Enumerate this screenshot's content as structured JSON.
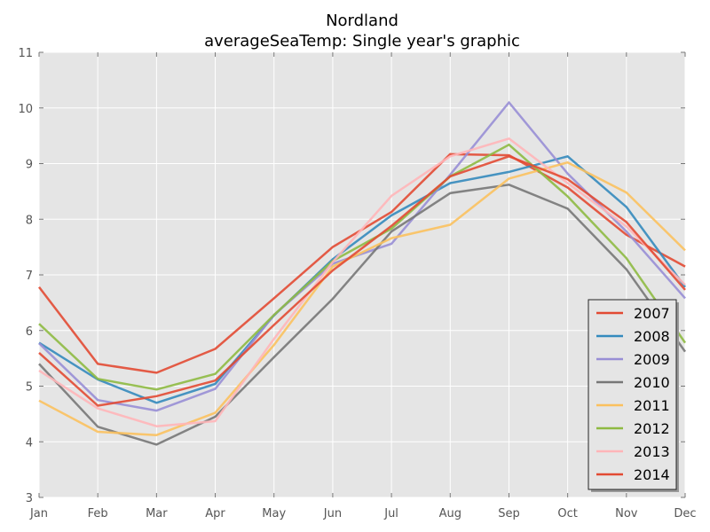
{
  "chart_data": {
    "type": "line",
    "title": "Nordland",
    "subtitle": "averageSeaTemp: Single year's graphic",
    "xlabel": "",
    "ylabel": "",
    "categories": [
      "Jan",
      "Feb",
      "Mar",
      "Apr",
      "May",
      "Jun",
      "Jul",
      "Aug",
      "Sep",
      "Oct",
      "Nov",
      "Dec"
    ],
    "ylim": [
      3,
      11
    ],
    "yticks": [
      3,
      4,
      5,
      6,
      7,
      8,
      9,
      10,
      11
    ],
    "grid": true,
    "legend_position": "bottom-right",
    "background": "#e5e5e5",
    "series": [
      {
        "name": "2007",
        "color": "#e24a33",
        "values": [
          6.78,
          5.4,
          5.24,
          5.67,
          6.58,
          7.5,
          8.13,
          9.17,
          9.15,
          8.57,
          7.72,
          7.15
        ]
      },
      {
        "name": "2008",
        "color": "#348abd",
        "values": [
          5.78,
          5.12,
          4.7,
          5.04,
          6.27,
          7.28,
          8.07,
          8.65,
          8.85,
          9.13,
          8.22,
          6.78
        ]
      },
      {
        "name": "2009",
        "color": "#988ed5",
        "values": [
          5.77,
          4.75,
          4.56,
          4.95,
          6.28,
          7.2,
          7.56,
          8.8,
          10.1,
          8.82,
          7.78,
          6.58
        ]
      },
      {
        "name": "2010",
        "color": "#777777",
        "values": [
          5.4,
          4.27,
          3.95,
          4.45,
          5.52,
          6.57,
          7.78,
          8.47,
          8.62,
          8.19,
          7.1,
          5.62
        ]
      },
      {
        "name": "2011",
        "color": "#fbc15e",
        "values": [
          4.74,
          4.18,
          4.12,
          4.52,
          5.74,
          7.15,
          7.66,
          7.9,
          8.73,
          9.02,
          8.48,
          7.44
        ]
      },
      {
        "name": "2012",
        "color": "#8eba42",
        "values": [
          6.12,
          5.13,
          4.94,
          5.22,
          6.28,
          7.25,
          7.83,
          8.77,
          9.34,
          8.41,
          7.3,
          5.78
        ]
      },
      {
        "name": "2013",
        "color": "#ffb5b8",
        "values": [
          5.28,
          4.6,
          4.28,
          4.37,
          5.85,
          7.23,
          8.42,
          9.13,
          9.45,
          8.65,
          7.87,
          6.82
        ]
      },
      {
        "name": "2014",
        "color": "#e24a33",
        "values": [
          5.6,
          4.65,
          4.82,
          5.1,
          6.1,
          7.08,
          7.88,
          8.77,
          9.13,
          8.72,
          7.95,
          6.73
        ]
      }
    ]
  }
}
